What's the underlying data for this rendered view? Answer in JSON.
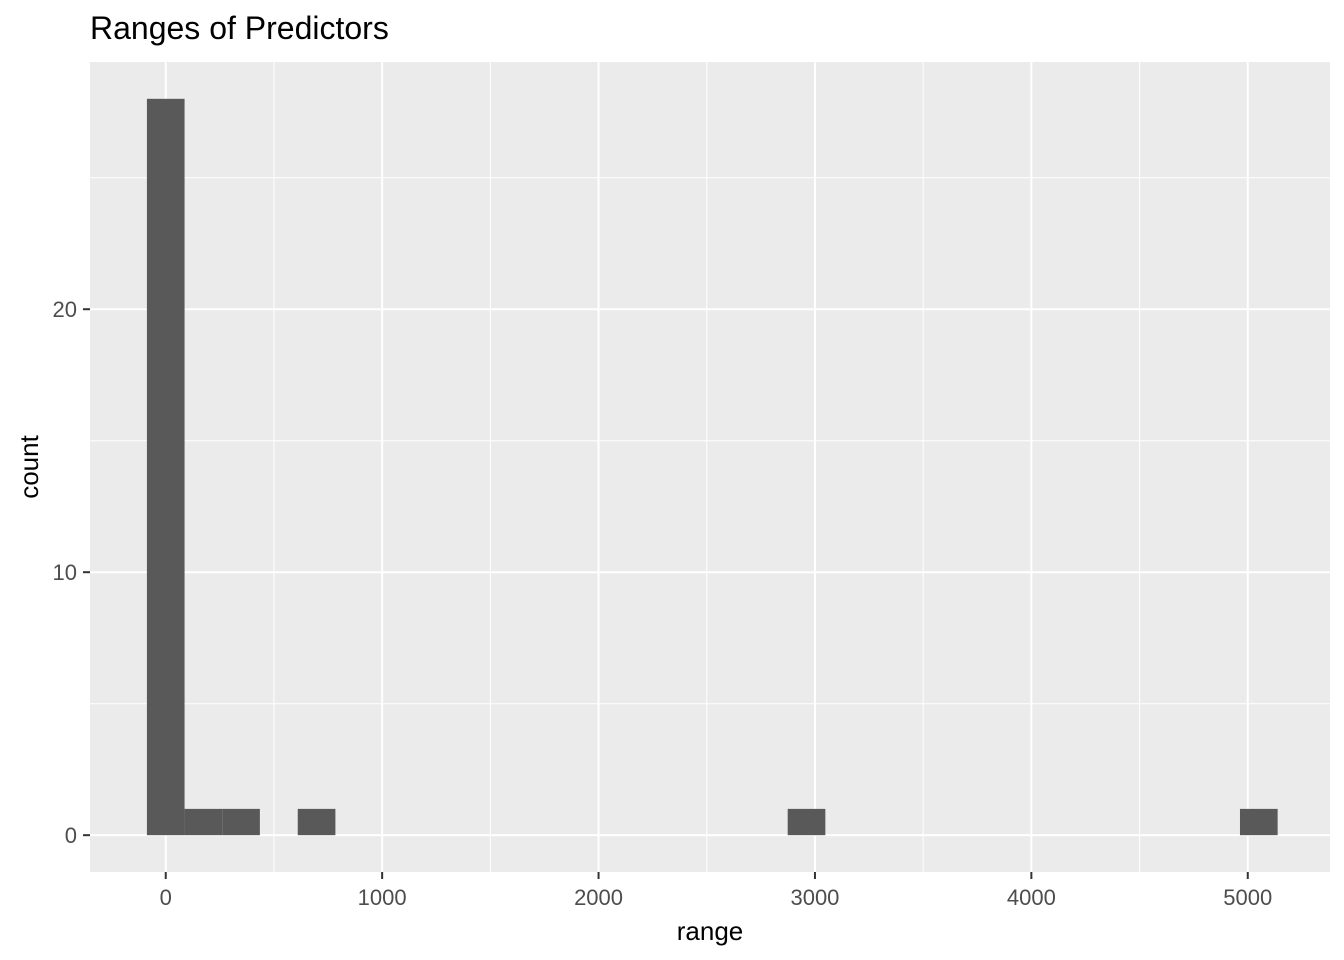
{
  "chart_data": {
    "type": "bar",
    "title": "Ranges of Predictors",
    "xlabel": "range",
    "ylabel": "count",
    "xlim": [
      -350,
      5380
    ],
    "ylim": [
      -1.4,
      29.4
    ],
    "x_ticks": [
      0,
      1000,
      2000,
      3000,
      4000,
      5000
    ],
    "y_ticks": [
      0,
      10,
      20
    ],
    "grid": true,
    "bins": [
      {
        "x0": -87,
        "x1": 87,
        "count": 28
      },
      {
        "x0": 87,
        "x1": 261,
        "count": 1
      },
      {
        "x0": 261,
        "x1": 435,
        "count": 1
      },
      {
        "x0": 610,
        "x1": 784,
        "count": 1
      },
      {
        "x0": 2874,
        "x1": 3048,
        "count": 1
      },
      {
        "x0": 4964,
        "x1": 5138,
        "count": 1
      }
    ],
    "colors": {
      "panel": "#ebebeb",
      "grid": "#ffffff",
      "bar": "#595959",
      "tick": "#333333"
    }
  }
}
